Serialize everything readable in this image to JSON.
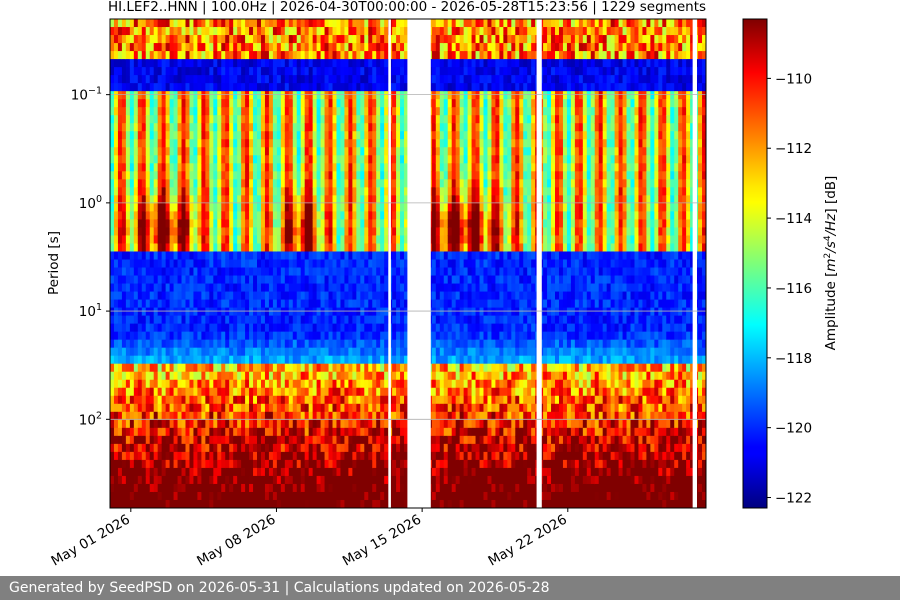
{
  "chart_data": {
    "type": "heatmap",
    "title": "HI.LEF2..HNN | 100.0Hz | 2026-04-30T00:00:00 - 2026-05-28T15:23:56 | 1229 segments",
    "ylabel": "Period [s]",
    "y_scale": "log",
    "y_inverted": true,
    "ylim": [
      0.02,
      660
    ],
    "y_ticks": [
      0.1,
      1,
      10,
      100
    ],
    "y_tick_labels": [
      {
        "base": "10",
        "exp": "−1"
      },
      {
        "base": "10",
        "exp": "0"
      },
      {
        "base": "10",
        "exp": "1"
      },
      {
        "base": "10",
        "exp": "2"
      }
    ],
    "xlim": [
      "2026-04-30T00:00:00",
      "2026-05-28T15:23:56"
    ],
    "x_ticks": [
      "2026-05-01",
      "2026-05-08",
      "2026-05-15",
      "2026-05-22"
    ],
    "x_tick_labels": [
      "May 01 2026",
      "May 08 2026",
      "May 15 2026",
      "May 22 2026"
    ],
    "data_gaps": [
      [
        "2026-05-13T09:00:00",
        "2026-05-13T12:00:00"
      ],
      [
        "2026-05-14T07:00:00",
        "2026-05-15T10:00:00"
      ],
      [
        "2026-05-20T12:00:00",
        "2026-05-20T18:00:00"
      ],
      [
        "2026-05-28T00:00:00",
        "2026-05-28T05:00:00"
      ]
    ],
    "colorbar": {
      "label": "Amplitude [m²/s⁴/Hz] [dB]",
      "label_prefix": "Amplitude [",
      "label_units_base": "m",
      "label_units_exp1": "2",
      "label_units_mid": "/s",
      "label_units_exp2": "4",
      "label_units_tail": "/Hz",
      "label_suffix": "] [dB]",
      "colormap": "jet",
      "vmin": -122.3,
      "vmax": -108.3,
      "ticks": [
        -110,
        -112,
        -114,
        -116,
        -118,
        -120,
        -122
      ],
      "tick_labels": [
        "−110",
        "−112",
        "−114",
        "−116",
        "−118",
        "−120",
        "−122"
      ]
    },
    "grid": true
  },
  "footer": {
    "text": "Generated by SeedPSD on 2026-05-31 | Calculations updated on 2026-05-28"
  }
}
